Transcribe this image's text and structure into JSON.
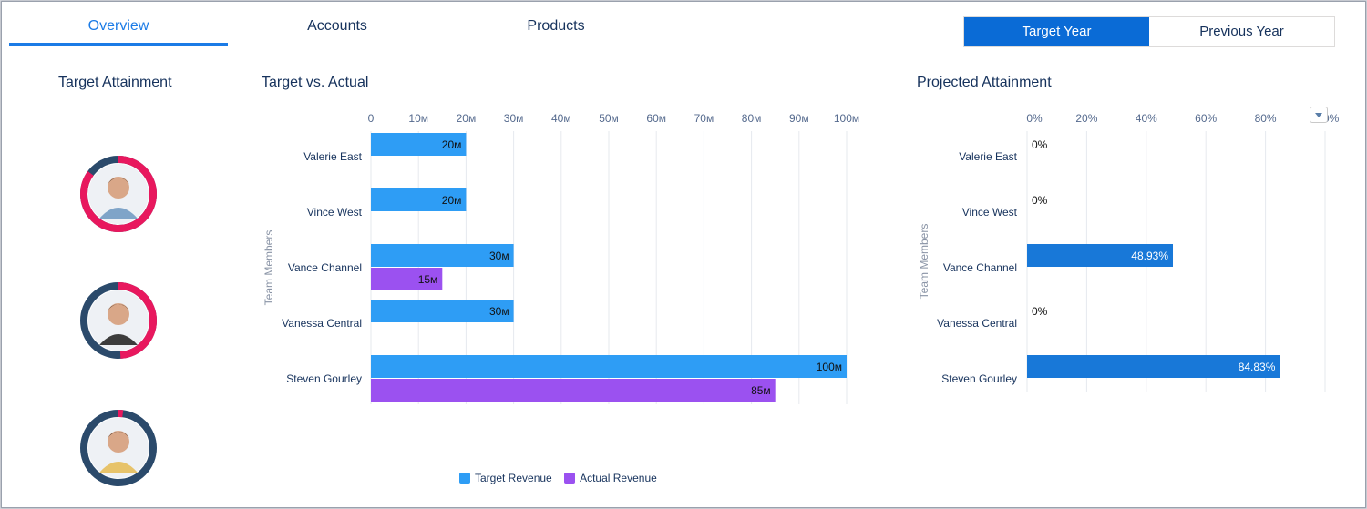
{
  "tabs": [
    {
      "label": "Overview",
      "active": true
    },
    {
      "label": "Accounts",
      "active": false
    },
    {
      "label": "Products",
      "active": false
    }
  ],
  "year_toggle": {
    "options": [
      "Target Year",
      "Previous Year"
    ],
    "selected": "Target Year"
  },
  "attainment": {
    "title": "Target Attainment"
  },
  "target_vs_actual": {
    "title": "Target vs. Actual"
  },
  "projected": {
    "title": "Projected Attainment"
  },
  "colors": {
    "target": "#2e9df5",
    "actual": "#9b51f0",
    "projected": "#1878d8",
    "ring_pink": "#e8185e",
    "ring_navy": "#2b4a6b"
  },
  "chart_data": [
    {
      "type": "bar",
      "orientation": "horizontal",
      "title": "Target vs. Actual",
      "ylabel": "Team Members",
      "xlim": [
        0,
        100
      ],
      "ticks": [
        "0",
        "10м",
        "20м",
        "30м",
        "40м",
        "50м",
        "60м",
        "70м",
        "80м",
        "90м",
        "100м"
      ],
      "categories": [
        "Valerie East",
        "Vince West",
        "Vance Channel",
        "Vanessa Central",
        "Steven Gourley"
      ],
      "series": [
        {
          "name": "Target Revenue",
          "values": [
            20,
            20,
            30,
            30,
            100
          ],
          "labels": [
            "20м",
            "20м",
            "30м",
            "30м",
            "100м"
          ]
        },
        {
          "name": "Actual Revenue",
          "values": [
            null,
            null,
            15,
            null,
            85
          ],
          "labels": [
            "",
            "",
            "15м",
            "",
            "85м"
          ]
        }
      ],
      "legend": "bottom"
    },
    {
      "type": "bar",
      "orientation": "horizontal",
      "title": "Projected Attainment",
      "ylabel": "Team Members",
      "xlim": [
        0,
        100
      ],
      "ticks": [
        "0%",
        "20%",
        "40%",
        "60%",
        "80%",
        "100%"
      ],
      "categories": [
        "Valerie East",
        "Vince West",
        "Vance Channel",
        "Vanessa Central",
        "Steven Gourley"
      ],
      "values": [
        0,
        0,
        48.93,
        0,
        84.83
      ],
      "labels": [
        "0%",
        "0%",
        "48.93%",
        "0%",
        "84.83%"
      ]
    }
  ],
  "avatars": [
    {
      "name": "avatar-1",
      "attainment": 0.85
    },
    {
      "name": "avatar-2",
      "attainment": 0.49
    },
    {
      "name": "avatar-3",
      "attainment": 0.02
    }
  ]
}
